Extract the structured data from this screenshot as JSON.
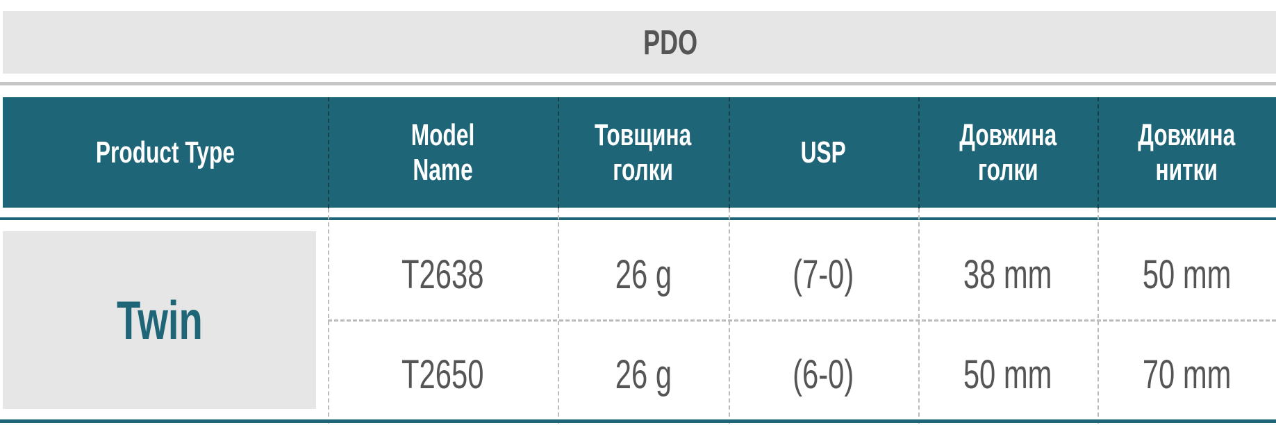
{
  "title": "PDO",
  "columns": [
    "Product Type",
    "Model\nName",
    "Товщина\nголки",
    "USP",
    "Довжина\nголки",
    "Довжина\nнитки"
  ],
  "product_type": "Twin",
  "rows": [
    [
      "T2638",
      "26 g",
      "(7-0)",
      "38 mm",
      "50 mm"
    ],
    [
      "T2650",
      "26 g",
      "(6-0)",
      "50 mm",
      "70 mm"
    ]
  ],
  "colors": {
    "teal": "#1e6577",
    "gray_band": "#e6e6e6",
    "text_gray": "#555555"
  }
}
